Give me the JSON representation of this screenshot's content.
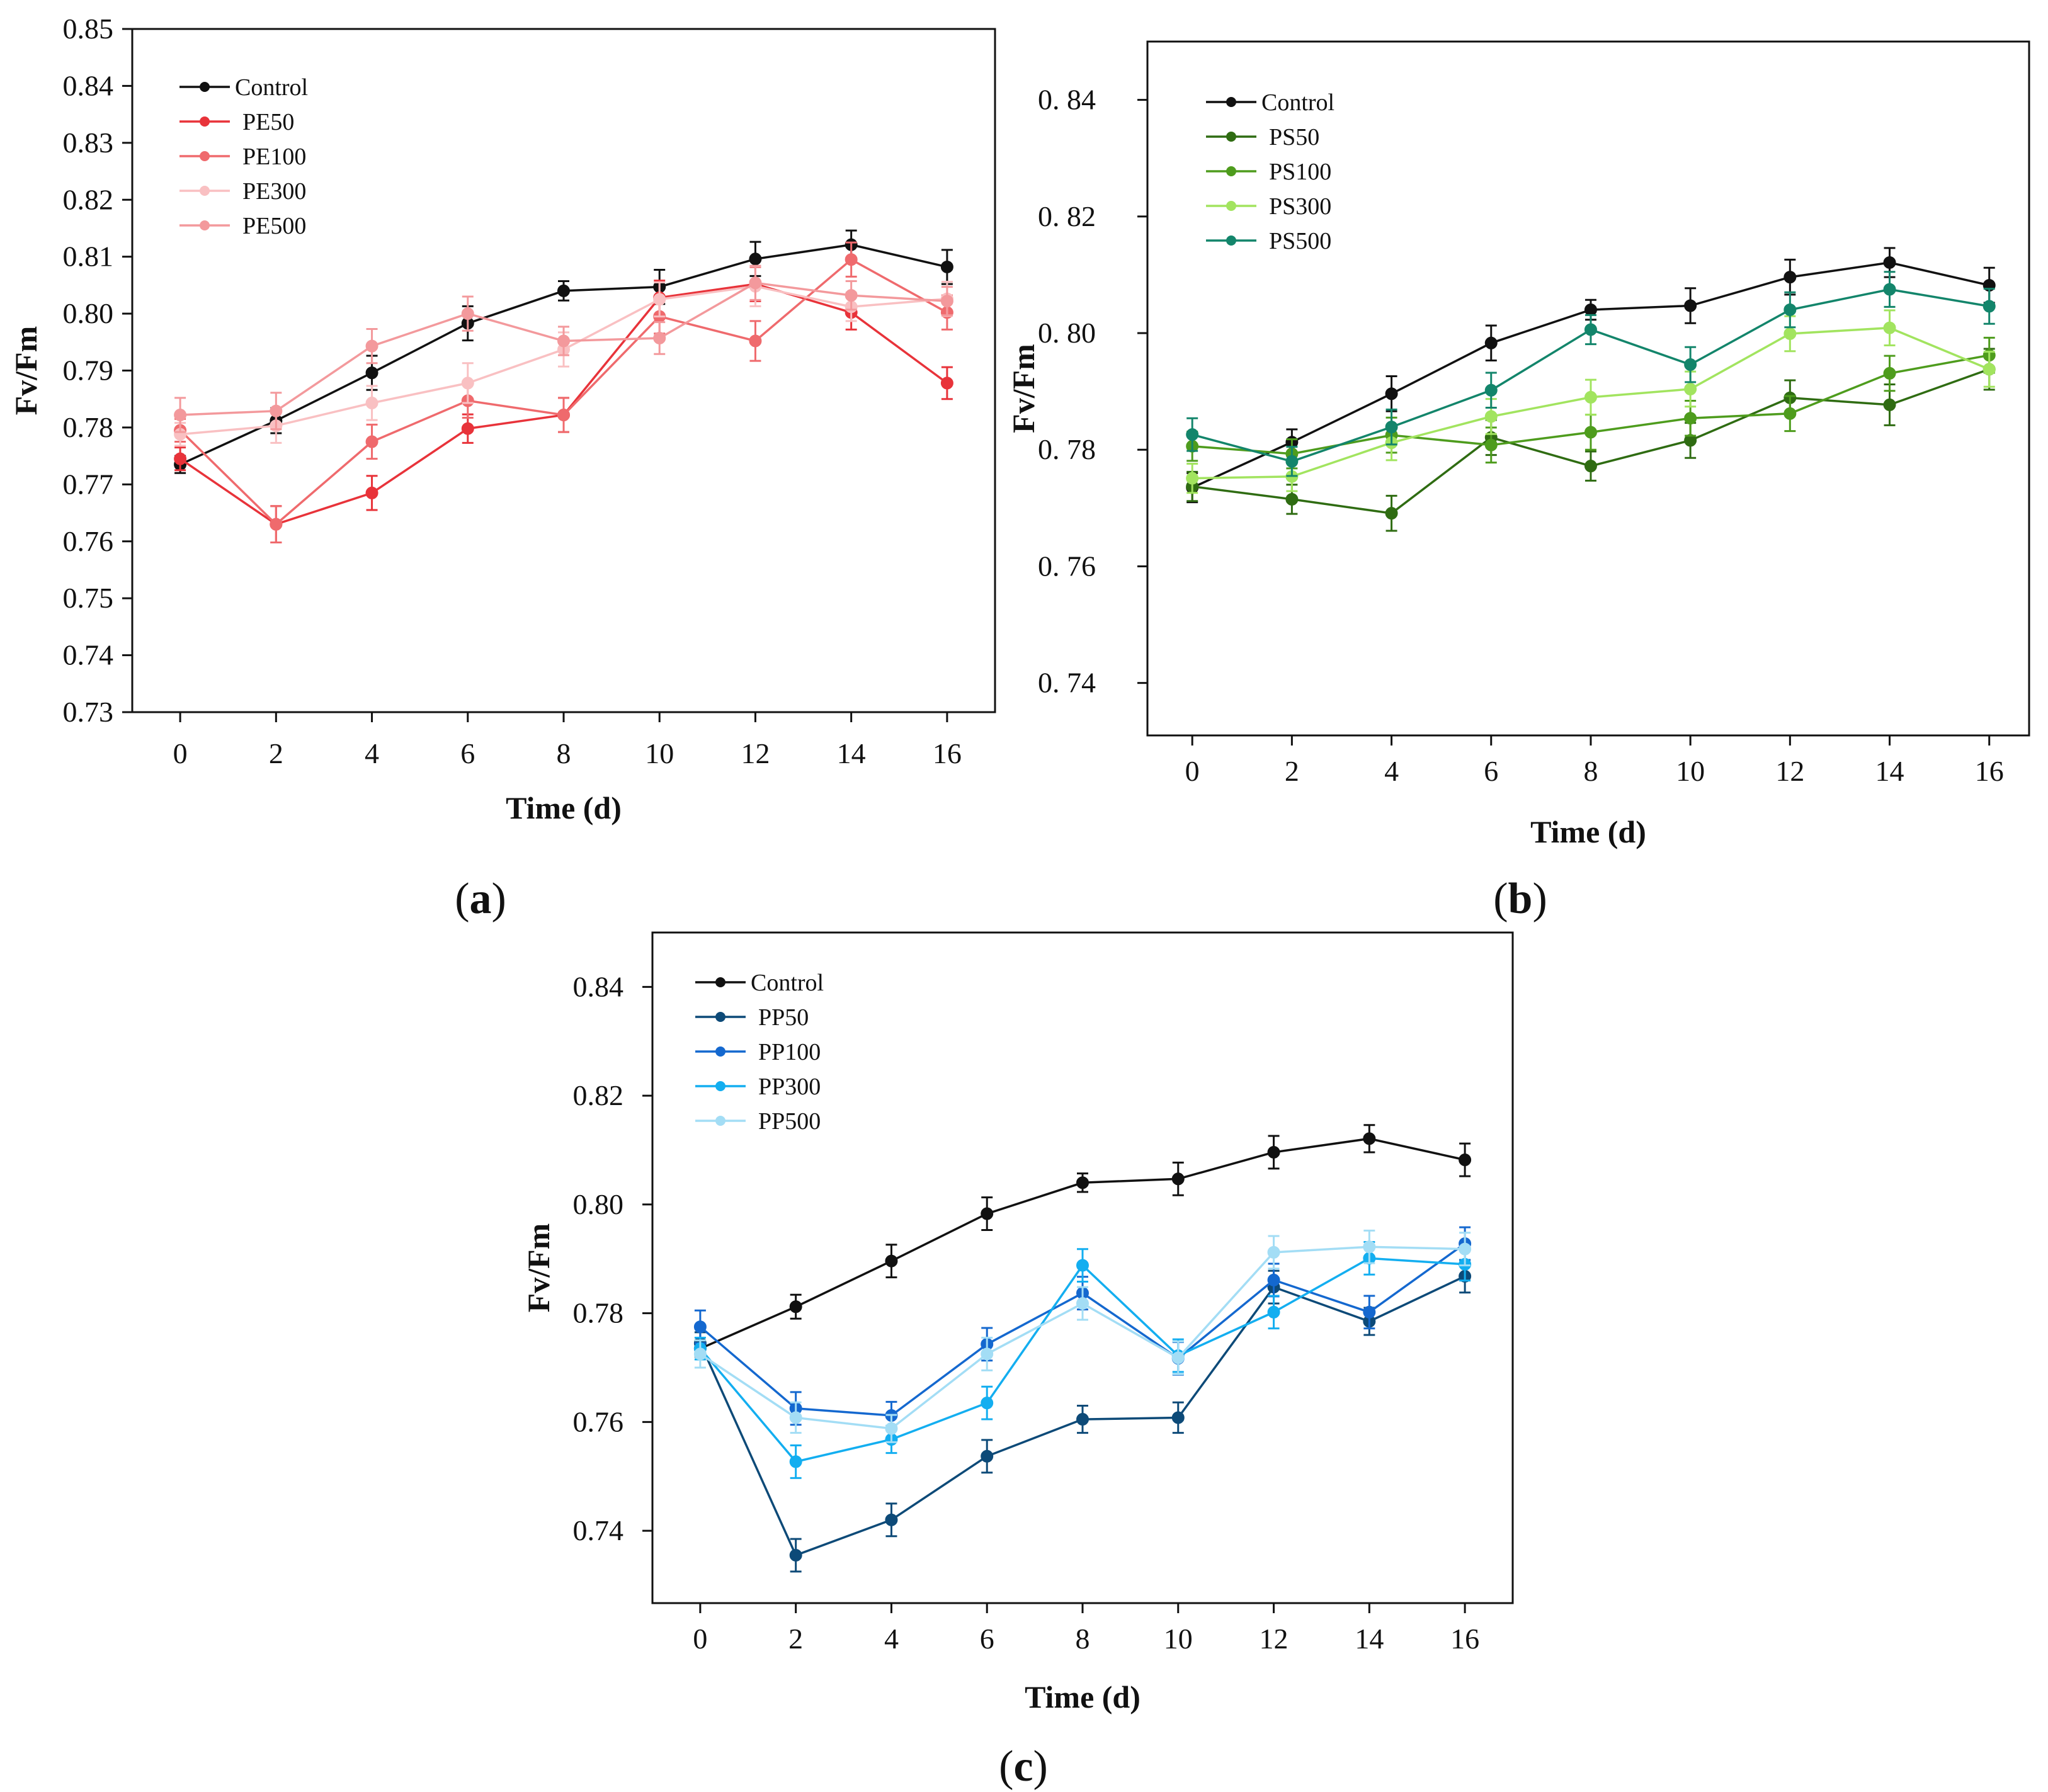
{
  "chart_data": [
    {
      "id": "a",
      "type": "line",
      "panel_label_prefix": "(",
      "panel_letter": "a",
      "panel_label_suffix": ")",
      "xlabel": "Time (d)",
      "ylabel": "Fv/Fm",
      "xlim": [
        -1,
        17
      ],
      "ylim": [
        0.73,
        0.85
      ],
      "x_ticks": [
        "0",
        "2",
        "4",
        "6",
        "8",
        "10",
        "12",
        "14",
        "16"
      ],
      "y_ticks": [
        "0.73",
        "0.74",
        "0.75",
        "0.76",
        "0.77",
        "0.78",
        "0.79",
        "0.80",
        "0.81",
        "0.82",
        "0.83",
        "0.84",
        "0.85"
      ],
      "legend_position": "top-left",
      "x": [
        0,
        2,
        4,
        6,
        8,
        10,
        12,
        14,
        16
      ],
      "series": [
        {
          "name": "Control",
          "color": "#111111",
          "values": [
            0.7735,
            0.7812,
            0.7896,
            0.7983,
            0.804,
            0.8047,
            0.8096,
            0.8121,
            0.8082
          ],
          "errors": [
            0.0015,
            0.0022,
            0.003,
            0.003,
            0.0017,
            0.003,
            0.003,
            0.0025,
            0.003
          ]
        },
        {
          "name": "PE50",
          "color": "#e8333a",
          "values": [
            0.7745,
            0.763,
            0.7685,
            0.7798,
            0.7822,
            0.8028,
            0.8052,
            0.8002,
            0.7878
          ],
          "errors": [
            0.002,
            0.0032,
            0.003,
            0.0025,
            0.003,
            0.003,
            0.003,
            0.003,
            0.0028
          ]
        },
        {
          "name": "PE100",
          "color": "#ef6a6d",
          "values": [
            0.7795,
            0.763,
            0.7775,
            0.7847,
            0.7822,
            0.7995,
            0.7952,
            0.8095,
            0.8002
          ],
          "errors": [
            0.002,
            0.0032,
            0.003,
            0.003,
            0.003,
            0.003,
            0.0035,
            0.003,
            0.003
          ]
        },
        {
          "name": "PE300",
          "color": "#f9c0c2",
          "values": [
            0.7788,
            0.7803,
            0.7843,
            0.7878,
            0.7937,
            0.8025,
            0.8048,
            0.8012,
            0.8026
          ],
          "errors": [
            0.002,
            0.003,
            0.003,
            0.0035,
            0.003,
            0.003,
            0.0035,
            0.0025,
            0.003
          ]
        },
        {
          "name": "PE500",
          "color": "#f3999c",
          "values": [
            0.7822,
            0.7829,
            0.7943,
            0.8,
            0.7952,
            0.7957,
            0.8054,
            0.8032,
            0.8022
          ],
          "errors": [
            0.003,
            0.0032,
            0.003,
            0.003,
            0.0025,
            0.0028,
            0.003,
            0.0025,
            0.0025
          ]
        }
      ]
    },
    {
      "id": "b",
      "type": "line",
      "panel_label_prefix": "(",
      "panel_letter": "b",
      "panel_label_suffix": ")",
      "xlabel": "Time (d)",
      "ylabel": "Fv/Fm",
      "xlim": [
        -0.9,
        16.8
      ],
      "ylim": [
        0.731,
        0.85
      ],
      "x_ticks": [
        "0",
        "2",
        "4",
        "6",
        "8",
        "10",
        "12",
        "14",
        "16"
      ],
      "y_ticks": [
        "0. 74",
        "0. 76",
        "0. 78",
        "0. 80",
        "0. 82",
        "0. 84"
      ],
      "legend_position": "top-left",
      "x": [
        0,
        2,
        4,
        6,
        8,
        10,
        12,
        14,
        16
      ],
      "series": [
        {
          "name": "Control",
          "color": "#111111",
          "values": [
            0.7735,
            0.7813,
            0.7896,
            0.7983,
            0.804,
            0.8047,
            0.8096,
            0.8121,
            0.8082
          ],
          "errors": [
            0.0025,
            0.0022,
            0.003,
            0.003,
            0.0017,
            0.003,
            0.003,
            0.0025,
            0.003
          ]
        },
        {
          "name": "PS50",
          "color": "#2f6c12",
          "values": [
            0.7737,
            0.7715,
            0.7691,
            0.7821,
            0.7772,
            0.7816,
            0.7889,
            0.7877,
            0.7938
          ],
          "errors": [
            0.0025,
            0.0025,
            0.003,
            0.003,
            0.0025,
            0.003,
            0.003,
            0.0035,
            0.0035
          ]
        },
        {
          "name": "PS100",
          "color": "#4e9c1d",
          "values": [
            0.7806,
            0.7793,
            0.7825,
            0.7808,
            0.783,
            0.7854,
            0.7862,
            0.7931,
            0.7962
          ],
          "errors": [
            0.0025,
            0.0025,
            0.003,
            0.003,
            0.003,
            0.003,
            0.003,
            0.003,
            0.003
          ]
        },
        {
          "name": "PS300",
          "color": "#a2e45f",
          "values": [
            0.7751,
            0.7754,
            0.7812,
            0.7857,
            0.789,
            0.7904,
            0.7999,
            0.8009,
            0.7938
          ],
          "errors": [
            0.0025,
            0.0025,
            0.003,
            0.003,
            0.003,
            0.003,
            0.003,
            0.003,
            0.003
          ]
        },
        {
          "name": "PS500",
          "color": "#13856b",
          "values": [
            0.7826,
            0.778,
            0.7839,
            0.7902,
            0.8006,
            0.7946,
            0.804,
            0.8075,
            0.8046
          ],
          "errors": [
            0.0028,
            0.0025,
            0.003,
            0.003,
            0.0025,
            0.003,
            0.003,
            0.003,
            0.003
          ]
        }
      ]
    },
    {
      "id": "c",
      "type": "line",
      "panel_label_prefix": "(",
      "panel_letter": "c",
      "panel_label_suffix": ")",
      "xlabel": "Time (d)",
      "ylabel": "Fv/Fm",
      "xlim": [
        -1,
        17
      ],
      "ylim": [
        0.7267,
        0.85
      ],
      "x_ticks": [
        "0",
        "2",
        "4",
        "6",
        "8",
        "10",
        "12",
        "14",
        "16"
      ],
      "y_ticks": [
        "0.74",
        "0.76",
        "0.78",
        "0.80",
        "0.82",
        "0.84"
      ],
      "legend_position": "top-left",
      "x": [
        0,
        2,
        4,
        6,
        8,
        10,
        12,
        14,
        16
      ],
      "series": [
        {
          "name": "Control",
          "color": "#111111",
          "values": [
            0.7735,
            0.7812,
            0.7896,
            0.7983,
            0.804,
            0.8047,
            0.8096,
            0.8121,
            0.8082
          ],
          "errors": [
            0.0015,
            0.0022,
            0.003,
            0.003,
            0.0017,
            0.003,
            0.003,
            0.0025,
            0.003
          ]
        },
        {
          "name": "PP50",
          "color": "#0d4a78",
          "values": [
            0.7745,
            0.7355,
            0.742,
            0.7537,
            0.7605,
            0.7608,
            0.7848,
            0.7785,
            0.7868
          ],
          "errors": [
            0.002,
            0.003,
            0.003,
            0.003,
            0.0025,
            0.0028,
            0.003,
            0.0025,
            0.003
          ]
        },
        {
          "name": "PP100",
          "color": "#1468cf",
          "values": [
            0.7775,
            0.7625,
            0.7612,
            0.7743,
            0.7837,
            0.7717,
            0.7861,
            0.7802,
            0.7928
          ],
          "errors": [
            0.003,
            0.003,
            0.0025,
            0.003,
            0.003,
            0.003,
            0.003,
            0.003,
            0.003
          ]
        },
        {
          "name": "PP300",
          "color": "#13aef0",
          "values": [
            0.7735,
            0.7527,
            0.7568,
            0.7635,
            0.7888,
            0.7722,
            0.7802,
            0.7901,
            0.789
          ],
          "errors": [
            0.002,
            0.003,
            0.0025,
            0.003,
            0.003,
            0.003,
            0.003,
            0.003,
            0.003
          ]
        },
        {
          "name": "PP500",
          "color": "#a3ddf5",
          "values": [
            0.7725,
            0.7608,
            0.7588,
            0.7725,
            0.7818,
            0.7718,
            0.7912,
            0.7922,
            0.7918
          ],
          "errors": [
            0.0025,
            0.0028,
            0.0025,
            0.003,
            0.003,
            0.003,
            0.003,
            0.003,
            0.003
          ]
        }
      ]
    }
  ]
}
